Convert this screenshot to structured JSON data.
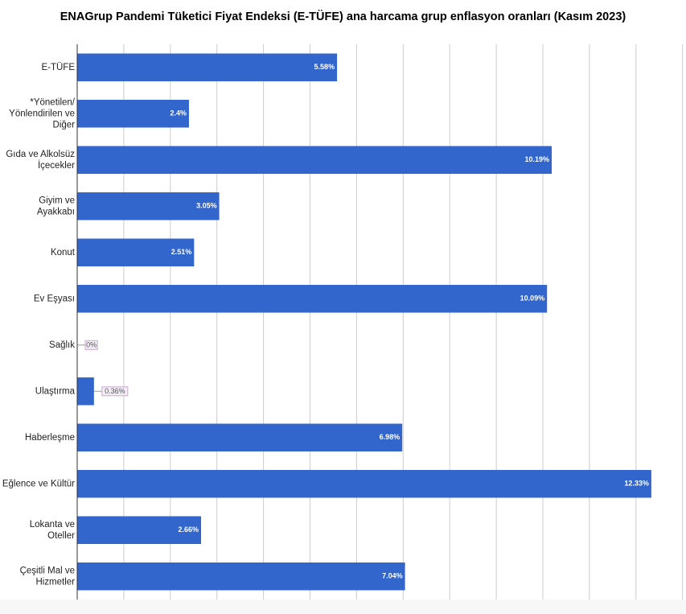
{
  "chart_data": {
    "type": "bar",
    "orientation": "horizontal",
    "title": "ENAGrup Pandemi Tüketici Fiyat Endeksi (E-TÜFE) ana harcama grup enflasyon oranları (Kasım 2023)",
    "categories": [
      "E-TÜFE",
      "*Yönetilen/ Yönlendirilen ve Diğer",
      "Gıda ve Alkolsüz İçecekler",
      "Giyim ve Ayakkabı",
      "Konut",
      "Ev Eşyası",
      "Sağlık",
      "Ulaştırma",
      "Haberleşme",
      "Eğlence ve Kültür",
      "Lokanta ve Oteller",
      "Çeşitli Mal ve Hizmetler"
    ],
    "category_lines": [
      [
        "E-TÜFE"
      ],
      [
        "*Yönetilen/",
        "Yönlendirilen ve",
        "Diğer"
      ],
      [
        "Gıda ve Alkolsüz",
        "İçecekler"
      ],
      [
        "Giyim ve",
        "Ayakkabı"
      ],
      [
        "Konut"
      ],
      [
        "Ev Eşyası"
      ],
      [
        "Sağlık"
      ],
      [
        "Ulaştırma"
      ],
      [
        "Haberleşme"
      ],
      [
        "Eğlence ve Kültür"
      ],
      [
        "Lokanta ve",
        "Oteller"
      ],
      [
        "Çeşitli Mal ve",
        "Hizmetler"
      ]
    ],
    "values": [
      5.58,
      2.4,
      10.19,
      3.05,
      2.51,
      10.09,
      0,
      0.36,
      6.98,
      12.33,
      2.66,
      7.04
    ],
    "value_labels": [
      "5.58%",
      "2.4%",
      "10.19%",
      "3.05%",
      "2.51%",
      "10.09%",
      "0%",
      "0.36%",
      "6.98%",
      "12.33%",
      "2.66%",
      "7.04%"
    ],
    "xlim": [
      0,
      13
    ],
    "grid": true,
    "legend": "none",
    "colors": {
      "bar": "#3366cc",
      "grid": "#cccccc",
      "axis": "#333333",
      "callout_box": "#f3eef6",
      "callout_border": "#c9a9cf"
    }
  }
}
